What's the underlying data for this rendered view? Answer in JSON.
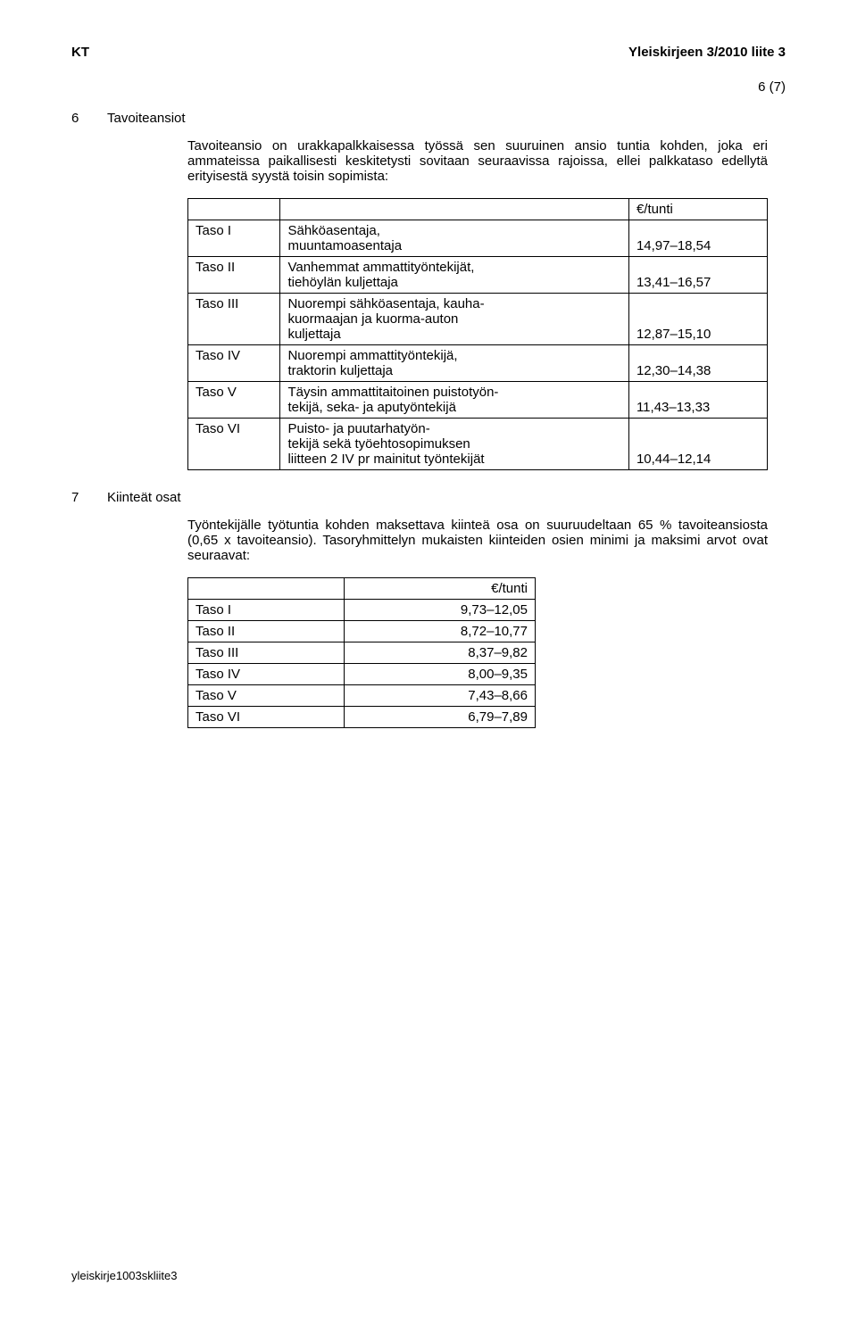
{
  "header": {
    "left": "KT",
    "right": "Yleiskirjeen 3/2010 liite 3",
    "pageNum": "6 (7)"
  },
  "section6": {
    "num": "6",
    "title": "Tavoiteansiot",
    "para": "Tavoiteansio on urakkapalkkaisessa työssä sen suuruinen ansio tuntia kohden, joka eri ammateissa paikallisesti keskitetysti sovitaan seuraavissa rajoissa, ellei palkkataso edellytä erityisestä syystä toisin sopimista:",
    "tableHeader": "€/tunti",
    "rows": [
      {
        "lvl": "Taso I",
        "desc": "Sähköasentaja,\nmuuntamoasentaja",
        "val": "14,97–18,54"
      },
      {
        "lvl": "Taso II",
        "desc": "Vanhemmat ammattityöntekijät,\ntiehöylän kuljettaja",
        "val": "13,41–16,57"
      },
      {
        "lvl": "Taso III",
        "desc": "Nuorempi sähköasentaja, kauha-\nkuormaajan ja kuorma-auton\nkuljettaja",
        "val": "12,87–15,10"
      },
      {
        "lvl": "Taso IV",
        "desc": "Nuorempi ammattityöntekijä,\ntraktorin kuljettaja",
        "val": "12,30–14,38"
      },
      {
        "lvl": "Taso V",
        "desc": "Täysin ammattitaitoinen puistotyön-\ntekijä, seka- ja aputyöntekijä",
        "val": "11,43–13,33"
      },
      {
        "lvl": "Taso VI",
        "desc": "Puisto- ja puutarhatyön-\ntekijä sekä työehtosopimuksen\nliitteen 2 IV pr mainitut työntekijät",
        "val": "10,44–12,14"
      }
    ]
  },
  "section7": {
    "num": "7",
    "title": "Kiinteät osat",
    "para": "Työntekijälle työtuntia kohden maksettava kiinteä osa on suuruudeltaan 65 % tavoiteansiosta (0,65 x tavoiteansio). Tasoryhmittelyn mukaisten kiinteiden osien minimi ja maksimi arvot ovat seuraavat:",
    "tableHeader": "€/tunti",
    "rows": [
      {
        "lvl": "Taso I",
        "val": "9,73–12,05"
      },
      {
        "lvl": "Taso II",
        "val": "8,72–10,77"
      },
      {
        "lvl": "Taso III",
        "val": "8,37–9,82"
      },
      {
        "lvl": "Taso IV",
        "val": "8,00–9,35"
      },
      {
        "lvl": "Taso V",
        "val": "7,43–8,66"
      },
      {
        "lvl": "Taso VI",
        "val": "6,79–7,89"
      }
    ]
  },
  "footer": "yleiskirje1003skliite3"
}
